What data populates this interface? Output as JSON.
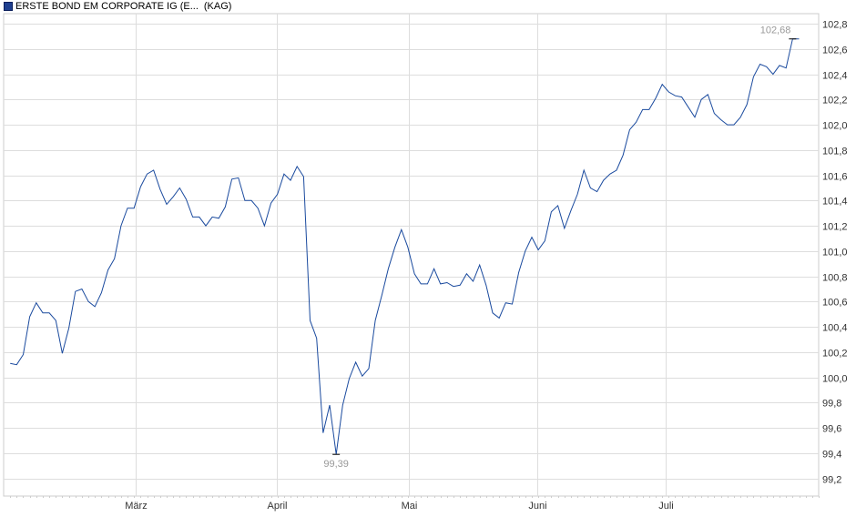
{
  "legend": {
    "name": "ERSTE BOND EM CORPORATE IG (E...",
    "suffix": "(KAG)",
    "color": "#1f3f8f"
  },
  "chart_data": {
    "type": "line",
    "series": [
      {
        "name": "ERSTE BOND EM CORPORATE IG (E...",
        "color": "#1a4a9e",
        "values": [
          100.11,
          100.1,
          100.18,
          100.48,
          100.59,
          100.51,
          100.51,
          100.45,
          100.19,
          100.39,
          100.68,
          100.7,
          100.6,
          100.56,
          100.67,
          100.85,
          100.94,
          101.2,
          101.34,
          101.34,
          101.51,
          101.61,
          101.64,
          101.49,
          101.37,
          101.43,
          101.5,
          101.41,
          101.27,
          101.27,
          101.2,
          101.27,
          101.26,
          101.35,
          101.57,
          101.58,
          101.4,
          101.4,
          101.34,
          101.2,
          101.38,
          101.45,
          101.61,
          101.56,
          101.67,
          101.59,
          100.45,
          100.31,
          99.56,
          99.78,
          99.39,
          99.78,
          99.99,
          100.12,
          100.01,
          100.07,
          100.45,
          100.65,
          100.86,
          101.03,
          101.17,
          101.03,
          100.82,
          100.74,
          100.74,
          100.86,
          100.74,
          100.75,
          100.72,
          100.73,
          100.82,
          100.76,
          100.89,
          100.73,
          100.51,
          100.47,
          100.59,
          100.58,
          100.83,
          101.0,
          101.11,
          101.01,
          101.08,
          101.31,
          101.36,
          101.18,
          101.32,
          101.45,
          101.64,
          101.5,
          101.47,
          101.56,
          101.61,
          101.64,
          101.76,
          101.96,
          102.02,
          102.12,
          102.12,
          102.21,
          102.32,
          102.26,
          102.23,
          102.22,
          102.14,
          102.06,
          102.2,
          102.24,
          102.09,
          102.04,
          102.0,
          102.0,
          102.06,
          102.16,
          102.38,
          102.48,
          102.46,
          102.4,
          102.47,
          102.45,
          102.68,
          102.68
        ]
      }
    ],
    "y_ticks": [
      "102,8",
      "102,6",
      "102,4",
      "102,2",
      "102,0",
      "101,8",
      "101,6",
      "101,4",
      "101,2",
      "101,0",
      "100,8",
      "100,6",
      "100,4",
      "100,2",
      "100,0",
      "99,8",
      "99,6",
      "99,4",
      "99,2"
    ],
    "y_tick_values": [
      102.8,
      102.6,
      102.4,
      102.2,
      102.0,
      101.8,
      101.6,
      101.4,
      101.2,
      101.0,
      100.8,
      100.6,
      100.4,
      100.2,
      100.0,
      99.8,
      99.6,
      99.4,
      99.2
    ],
    "ylim": [
      99.06,
      102.88
    ],
    "x_labels": [
      "März",
      "April",
      "Mai",
      "Juni",
      "Juli"
    ],
    "x_label_positions": [
      19.2,
      40.9,
      61.1,
      80.8,
      100.6
    ],
    "x_range": [
      -1,
      124
    ],
    "annotations": [
      {
        "text": "102,68",
        "index": 120,
        "value": 102.68
      },
      {
        "text": "99,39",
        "index": 50,
        "value": 99.39
      }
    ],
    "grid": true,
    "grid_color": "#dddddd",
    "line_color": "#1a4a9e",
    "legend_position": "top-left"
  }
}
